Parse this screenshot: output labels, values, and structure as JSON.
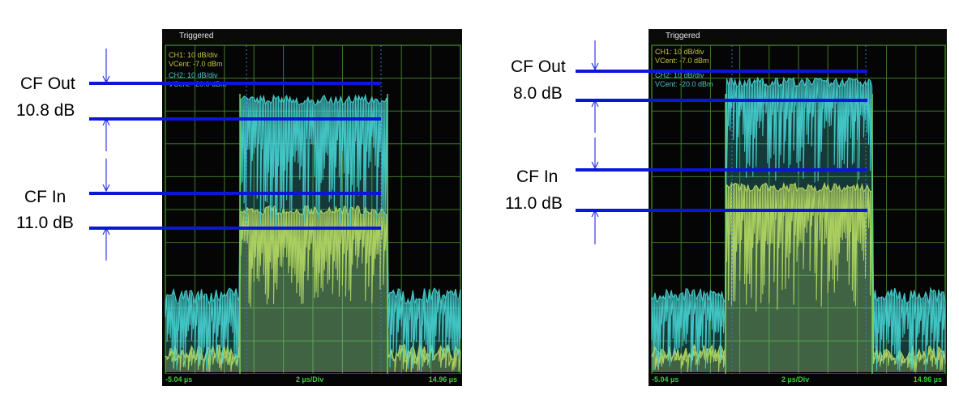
{
  "panels": [
    {
      "status": "Triggered",
      "ch1_scale": "CH1: 10 dB/div",
      "ch1_vcent": "VCent: -7.0 dBm",
      "ch2_scale": "CH2: 10 dB/div",
      "ch2_vcent": "VCent: -20.0 dBm",
      "x_start": "-5.04 µs",
      "x_div": "2 µs/Div",
      "x_end": "14.96 µs",
      "cf_out_label": "CF Out",
      "cf_out_value": "10.8 dB",
      "cf_in_label": "CF In",
      "cf_in_value": "11.0 dB"
    },
    {
      "status": "Triggered",
      "ch1_scale": "CH1: 10 dB/div",
      "ch1_vcent": "VCent: -7.0 dBm",
      "ch2_scale": "CH2: 10 dB/div",
      "ch2_vcent": "VCent: -20.0 dBm",
      "x_start": "-5.04 µs",
      "x_div": "2 µs/Div",
      "x_end": "14.96 µs",
      "cf_out_label": "CF Out",
      "cf_out_value": "8.0 dB",
      "cf_in_label": "CF In",
      "cf_in_value": "11.0 dB"
    }
  ],
  "chart_data": [
    {
      "type": "line",
      "x_range_us": [
        -5.04,
        14.96
      ],
      "x_per_div_us": 2,
      "y_per_div_db": 10,
      "grid": true,
      "series": [
        {
          "name": "CH1",
          "vcent_dbm": -7.0,
          "color": "#d6d63a"
        },
        {
          "name": "CH2",
          "vcent_dbm": -20.0,
          "color": "#48d8d8"
        }
      ],
      "annotations": [
        {
          "label": "CF Out",
          "value_db": 10.8
        },
        {
          "label": "CF In",
          "value_db": 11.0
        }
      ]
    },
    {
      "type": "line",
      "x_range_us": [
        -5.04,
        14.96
      ],
      "x_per_div_us": 2,
      "y_per_div_db": 10,
      "grid": true,
      "series": [
        {
          "name": "CH1",
          "vcent_dbm": -7.0,
          "color": "#d6d63a"
        },
        {
          "name": "CH2",
          "vcent_dbm": -20.0,
          "color": "#48d8d8"
        }
      ],
      "annotations": [
        {
          "label": "CF Out",
          "value_db": 8.0
        },
        {
          "label": "CF In",
          "value_db": 11.0
        }
      ]
    }
  ],
  "colors": {
    "annotation_blue": "#0b16d8",
    "grid_green": "#3f7a2a",
    "ch1_yellow": "#d6d63a",
    "ch2_cyan": "#48d8d8"
  }
}
